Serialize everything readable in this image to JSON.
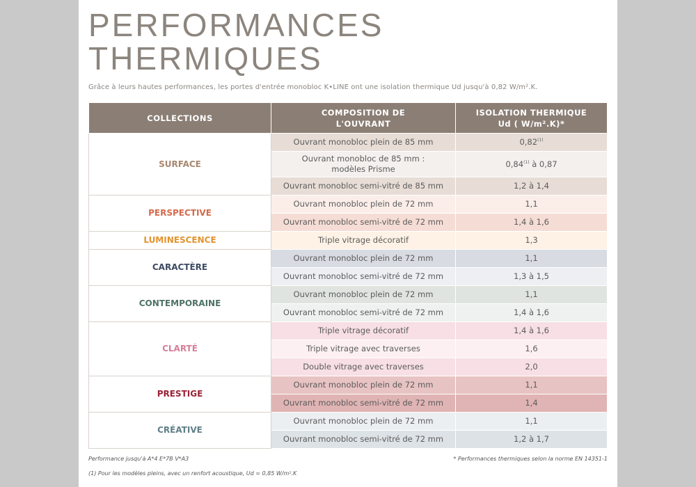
{
  "title": {
    "line1": "PERFORMANCES",
    "line2": "THERMIQUES"
  },
  "subtitle": "Grâce à leurs hautes performances, les portes d'entrée monobloc K•LINE ont une isolation thermique Ud jusqu'à 0,82 W/m².K.",
  "table": {
    "headers": {
      "collections": "COLLECTIONS",
      "composition_line1": "COMPOSITION DE",
      "composition_line2": "L'OUVRANT",
      "isolation_line1": "ISOLATION THERMIQUE",
      "isolation_line2": "Ud ( W/m².K)*"
    },
    "groups": [
      {
        "name": "SURFACE",
        "color": "#a9876f",
        "rows": [
          {
            "comp": "Ouvrant monobloc plein de 85 mm",
            "ud": "0,82",
            "ud_sup": "(1)",
            "ud_rest": "",
            "bg": "#e7ddd6"
          },
          {
            "comp": "Ouvrant monobloc de 85 mm :",
            "comp2": "modèles Prisme",
            "ud": "0,84",
            "ud_sup": "(1)",
            "ud_rest": " à 0,87",
            "bg": "#f4f0ed"
          },
          {
            "comp": "Ouvrant monobloc semi-vitré de 85 mm",
            "ud": "1,2 à 1,4",
            "bg": "#e7ddd6"
          }
        ]
      },
      {
        "name": "PERSPECTIVE",
        "color": "#d46a4c",
        "rows": [
          {
            "comp": "Ouvrant monobloc plein de 72 mm",
            "ud": "1,1",
            "bg": "#fbeee9"
          },
          {
            "comp": "Ouvrant monobloc semi-vitré de 72 mm",
            "ud": "1,4 à 1,6",
            "bg": "#f5ddd5"
          }
        ]
      },
      {
        "name": "LUMINESCENCE",
        "color": "#e3932e",
        "rows": [
          {
            "comp": "Triple vitrage décoratif",
            "ud": "1,3",
            "bg": "#fdf2e5"
          }
        ]
      },
      {
        "name": "CARACTÈRE",
        "color": "#3d4a63",
        "rows": [
          {
            "comp": "Ouvrant monobloc plein de 72 mm",
            "ud": "1,1",
            "bg": "#d9dbe2"
          },
          {
            "comp": "Ouvrant monobloc semi-vitré de 72 mm",
            "ud": "1,3 à 1,5",
            "bg": "#eeeff2"
          }
        ]
      },
      {
        "name": "CONTEMPORAINE",
        "color": "#4f7266",
        "rows": [
          {
            "comp": "Ouvrant monobloc plein de 72 mm",
            "ud": "1,1",
            "bg": "#dfe4e1"
          },
          {
            "comp": "Ouvrant monobloc semi-vitré de 72 mm",
            "ud": "1,4 à 1,6",
            "bg": "#eef1ef"
          }
        ]
      },
      {
        "name": "CLARTÉ",
        "color": "#d57f9a",
        "rows": [
          {
            "comp": "Triple vitrage décoratif",
            "ud": "1,4 à 1,6",
            "bg": "#f7dfe5"
          },
          {
            "comp": "Triple vitrage avec traverses",
            "ud": "1,6",
            "bg": "#fcf0f3"
          },
          {
            "comp": "Double vitrage avec traverses",
            "ud": "2,0",
            "bg": "#f7dfe5"
          }
        ]
      },
      {
        "name": "PRESTIGE",
        "color": "#9a2136",
        "rows": [
          {
            "comp": "Ouvrant monobloc plein de 72 mm",
            "ud": "1,1",
            "bg": "#e8c3c3"
          },
          {
            "comp": "Ouvrant monobloc semi-vitré de 72 mm",
            "ud": "1,4",
            "bg": "#e0b4b4"
          }
        ]
      },
      {
        "name": "CRÉATIVE",
        "color": "#5f7f87",
        "rows": [
          {
            "comp": "Ouvrant monobloc plein de 72 mm",
            "ud": "1,1",
            "bg": "#eceff1"
          },
          {
            "comp": "Ouvrant monobloc semi-vitré de 72 mm",
            "ud": "1,2 à 1,7",
            "bg": "#dde2e6"
          }
        ]
      }
    ]
  },
  "notes": {
    "performance": "Performance jusqu'à A*4 E*7B V*A3",
    "norm": "* Performances thermiques selon la norme EN 14351-1",
    "footnote": "(1) Pour les modèles pleins, avec un renfort acoustique, Ud = 0,85 W/m².K"
  }
}
